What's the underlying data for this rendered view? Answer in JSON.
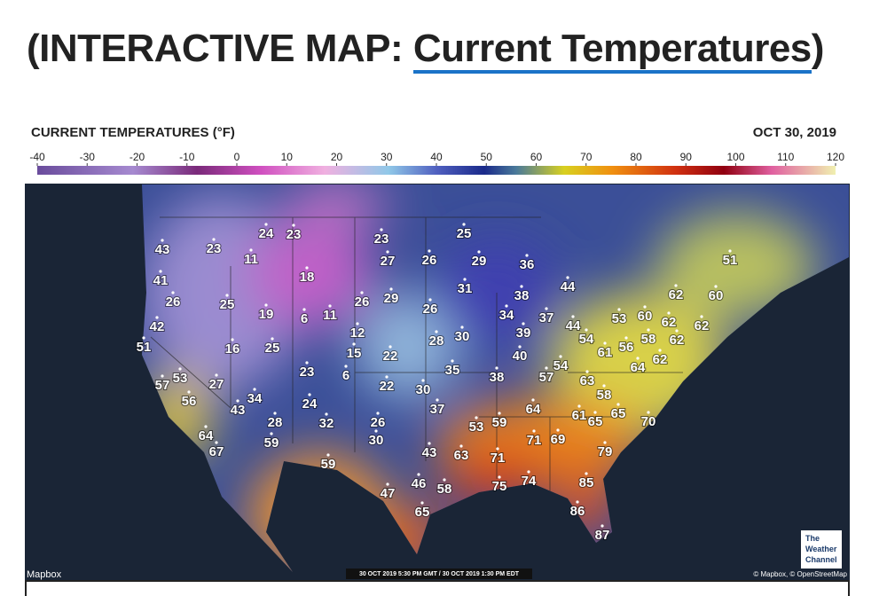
{
  "header": {
    "title_prefix": "(INTERACTIVE MAP: ",
    "title_link": "Current Temperatures",
    "title_suffix": ")"
  },
  "legend": {
    "title": "CURRENT TEMPERATURES (°F)",
    "date": "OCT 30, 2019",
    "scale_range": [
      -40,
      120
    ],
    "ticks": [
      -40,
      -30,
      -20,
      -10,
      0,
      10,
      20,
      30,
      40,
      50,
      60,
      70,
      80,
      90,
      100,
      110,
      120
    ]
  },
  "map": {
    "temperatures": [
      43,
      23,
      24,
      23,
      11,
      23,
      25,
      27,
      26,
      29,
      36,
      51,
      41,
      18,
      31,
      44,
      38,
      62,
      60,
      26,
      25,
      26,
      29,
      26,
      34,
      37,
      19,
      6,
      11,
      42,
      44,
      53,
      60,
      62,
      62,
      51,
      16,
      25,
      12,
      28,
      30,
      39,
      54,
      58,
      62,
      61,
      56,
      15,
      22,
      40,
      62,
      35,
      54,
      64,
      23,
      6,
      38,
      57,
      63,
      57,
      53,
      27,
      22,
      30,
      58,
      56,
      34,
      24,
      43,
      37,
      64,
      61,
      65,
      65,
      70,
      28,
      32,
      26,
      53,
      59,
      64,
      30,
      71,
      69,
      59,
      67,
      43,
      63,
      71,
      79,
      59,
      74,
      85,
      46,
      58,
      75,
      47,
      86,
      65,
      87
    ],
    "attribution_left": "Mapbox",
    "timestamp": "30 OCT 2019 5:30 PM GMT / 30 OCT 2019 1:30 PM EDT",
    "attribution_right": "© Mapbox, © OpenStreetMap",
    "logo": [
      "The",
      "Weather",
      "Channel"
    ]
  }
}
